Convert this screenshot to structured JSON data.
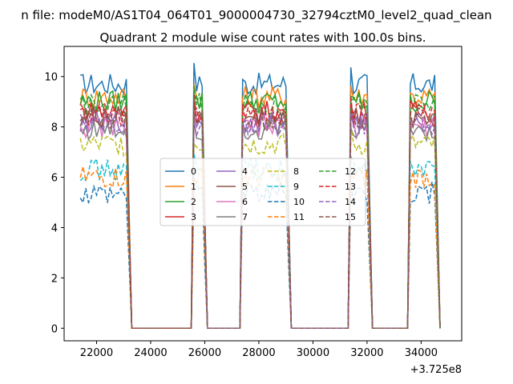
{
  "chart_data": {
    "type": "line",
    "suptitle": "n file: modeM0/AS1T04_064T01_9000004730_32794cztM0_level2_quad_clean",
    "title": "Quadrant 2 module wise count rates with 100.0s bins.",
    "xlabel": "",
    "ylabel": "",
    "x_offset_label": "+3.725e8",
    "xlim": [
      20800,
      35500
    ],
    "ylim": [
      -0.5,
      11.2
    ],
    "xticks": [
      22000,
      24000,
      26000,
      28000,
      30000,
      32000,
      34000
    ],
    "yticks": [
      0,
      2,
      4,
      6,
      8,
      10
    ],
    "grid": false,
    "legend_position": "center",
    "gaps": [
      [
        23400,
        25400
      ],
      [
        26000,
        27300
      ],
      [
        29200,
        31300
      ],
      [
        32200,
        33600
      ]
    ],
    "series": [
      {
        "name": "0",
        "color": "#1f77b4",
        "style": "solid",
        "level": 9.7
      },
      {
        "name": "1",
        "color": "#ff7f0e",
        "style": "solid",
        "level": 9.2
      },
      {
        "name": "2",
        "color": "#2ca02c",
        "style": "solid",
        "level": 9.0
      },
      {
        "name": "3",
        "color": "#d62728",
        "style": "solid",
        "level": 8.6
      },
      {
        "name": "4",
        "color": "#9467bd",
        "style": "solid",
        "level": 8.2
      },
      {
        "name": "5",
        "color": "#8c564b",
        "style": "solid",
        "level": 8.4
      },
      {
        "name": "6",
        "color": "#e377c2",
        "style": "solid",
        "level": 8.0
      },
      {
        "name": "7",
        "color": "#7f7f7f",
        "style": "solid",
        "level": 7.9
      },
      {
        "name": "8",
        "color": "#bcbd22",
        "style": "dashed",
        "level": 7.3
      },
      {
        "name": "9",
        "color": "#17becf",
        "style": "dashed",
        "level": 6.3
      },
      {
        "name": "10",
        "color": "#1f77b4",
        "style": "dashed",
        "level": 5.4
      },
      {
        "name": "11",
        "color": "#ff7f0e",
        "style": "dashed",
        "level": 6.0
      },
      {
        "name": "12",
        "color": "#2ca02c",
        "style": "dashed",
        "level": 8.9
      },
      {
        "name": "13",
        "color": "#d62728",
        "style": "dashed",
        "level": 8.5
      },
      {
        "name": "14",
        "color": "#9467bd",
        "style": "dashed",
        "level": 8.1
      },
      {
        "name": "15",
        "color": "#8c564b",
        "style": "dashed",
        "level": 8.3
      }
    ]
  }
}
